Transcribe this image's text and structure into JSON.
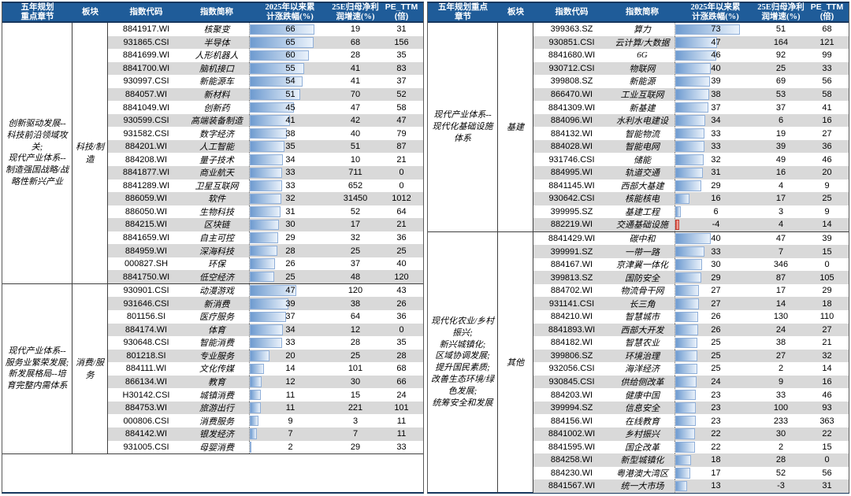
{
  "header": {
    "sector": "板块",
    "code": "指数代码",
    "name": "指数简称",
    "chg": "2025年以来累\n计涨跌幅(%)",
    "profit": "25E归母净利\n润增速(%)",
    "pe": "PE_TTM\n(倍)"
  },
  "colors": {
    "header_bg": "#1F5C99",
    "header_border": "#17375E",
    "bar_fill_start": "#6E9BD0",
    "bar_fill_end": "#EAF2FB",
    "bar_border": "#8FAFD9",
    "neg_bar_fill": "#E05A4E",
    "stripe": "#D9D9D9"
  },
  "tables": [
    {
      "chapter_header": "五年规划\n重点章节",
      "bar_max": 66,
      "trailing_blank": true,
      "sections": [
        {
          "chapter": "创新驱动发展--科技前沿领域攻关;\n现代产业体系--制造强国战略/战略性新兴产业",
          "sector": "科技/制造",
          "rows": [
            [
              "8841917.WI",
              "核聚变",
              "66",
              "19",
              "31"
            ],
            [
              "931865.CSI",
              "半导体",
              "65",
              "68",
              "156"
            ],
            [
              "8841699.WI",
              "人形机器人",
              "60",
              "28",
              "35"
            ],
            [
              "8841700.WI",
              "脑机接口",
              "55",
              "41",
              "83"
            ],
            [
              "930997.CSI",
              "新能源车",
              "54",
              "41",
              "37"
            ],
            [
              "884057.WI",
              "新材料",
              "51",
              "70",
              "52"
            ],
            [
              "8841049.WI",
              "创新药",
              "45",
              "47",
              "58"
            ],
            [
              "930599.CSI",
              "高端装备制造",
              "41",
              "42",
              "47"
            ],
            [
              "931582.CSI",
              "数字经济",
              "38",
              "40",
              "79"
            ],
            [
              "884201.WI",
              "人工智能",
              "35",
              "51",
              "87"
            ],
            [
              "884208.WI",
              "量子技术",
              "34",
              "10",
              "21"
            ],
            [
              "8841877.WI",
              "商业航天",
              "33",
              "711",
              "0"
            ],
            [
              "8841289.WI",
              "卫星互联网",
              "33",
              "652",
              "0"
            ],
            [
              "886059.WI",
              "软件",
              "32",
              "31450",
              "1012"
            ],
            [
              "886050.WI",
              "生物科技",
              "31",
              "52",
              "64"
            ],
            [
              "884215.WI",
              "区块链",
              "30",
              "17",
              "21"
            ],
            [
              "8841659.WI",
              "自主可控",
              "29",
              "32",
              "36"
            ],
            [
              "884959.WI",
              "深海科技",
              "28",
              "25",
              "25"
            ],
            [
              "000827.SH",
              "环保",
              "26",
              "37",
              "40"
            ],
            [
              "8841750.WI",
              "低空经济",
              "25",
              "48",
              "120"
            ]
          ]
        },
        {
          "chapter": "现代产业体系--服务业繁荣发展;\n新发展格局--培育完整内需体系",
          "sector": "消费/服务",
          "rows": [
            [
              "930901.CSI",
              "动漫游戏",
              "47",
              "120",
              "43"
            ],
            [
              "931646.CSI",
              "新消费",
              "39",
              "38",
              "26"
            ],
            [
              "801156.SI",
              "医疗服务",
              "37",
              "64",
              "36"
            ],
            [
              "884174.WI",
              "体育",
              "34",
              "12",
              "0"
            ],
            [
              "930648.CSI",
              "智能消费",
              "33",
              "28",
              "35"
            ],
            [
              "801218.SI",
              "专业服务",
              "20",
              "25",
              "28"
            ],
            [
              "884111.WI",
              "文化传媒",
              "14",
              "101",
              "68"
            ],
            [
              "866134.WI",
              "教育",
              "12",
              "30",
              "66"
            ],
            [
              "H30142.CSI",
              "城镇消费",
              "11",
              "15",
              "24"
            ],
            [
              "884753.WI",
              "旅游出行",
              "11",
              "221",
              "101"
            ],
            [
              "000806.CSI",
              "消费服务",
              "9",
              "3",
              "11"
            ],
            [
              "884142.WI",
              "银发经济",
              "7",
              "7",
              "11"
            ],
            [
              "931005.CSI",
              "母婴消费",
              "2",
              "29",
              "33"
            ]
          ]
        }
      ]
    },
    {
      "chapter_header": "五年规划重点\n章节",
      "bar_max": 73,
      "trailing_blank": false,
      "sections": [
        {
          "chapter": "现代产业体系--现代化基础设施体系",
          "sector": "基建",
          "rows": [
            [
              "399363.SZ",
              "算力",
              "73",
              "51",
              "68"
            ],
            [
              "930851.CSI",
              "云计算/大数据",
              "47",
              "164",
              "121"
            ],
            [
              "8841680.WI",
              "6G",
              "46",
              "92",
              "99"
            ],
            [
              "930712.CSI",
              "物联网",
              "40",
              "25",
              "33"
            ],
            [
              "399808.SZ",
              "新能源",
              "39",
              "69",
              "56"
            ],
            [
              "866470.WI",
              "工业互联网",
              "38",
              "53",
              "58"
            ],
            [
              "8841309.WI",
              "新基建",
              "37",
              "37",
              "41"
            ],
            [
              "884096.WI",
              "水利水电建设",
              "34",
              "6",
              "16"
            ],
            [
              "884132.WI",
              "智能物流",
              "33",
              "19",
              "27"
            ],
            [
              "884028.WI",
              "智能电网",
              "33",
              "39",
              "36"
            ],
            [
              "931746.CSI",
              "储能",
              "32",
              "49",
              "46"
            ],
            [
              "884995.WI",
              "轨道交通",
              "31",
              "16",
              "20"
            ],
            [
              "8841145.WI",
              "西部大基建",
              "29",
              "4",
              "9"
            ],
            [
              "930642.CSI",
              "核能核电",
              "16",
              "17",
              "25"
            ],
            [
              "399995.SZ",
              "基建工程",
              "6",
              "3",
              "9"
            ],
            [
              "882219.WI",
              "交通基础设施",
              "-4",
              "4",
              "14"
            ]
          ]
        },
        {
          "chapter": "现代化农业/乡村振兴;\n新兴城镇化;\n区域协调发展;\n提升国民素质;\n改善生态环境/绿色发展;\n统筹安全和发展",
          "sector": "其他",
          "rows": [
            [
              "8841429.WI",
              "碳中和",
              "40",
              "47",
              "39"
            ],
            [
              "399991.SZ",
              "一带一路",
              "33",
              "7",
              "15"
            ],
            [
              "884167.WI",
              "京津冀一体化",
              "30",
              "346",
              "0"
            ],
            [
              "399813.SZ",
              "国防安全",
              "29",
              "87",
              "105"
            ],
            [
              "884702.WI",
              "物流骨干网",
              "27",
              "17",
              "29"
            ],
            [
              "931141.CSI",
              "长三角",
              "27",
              "14",
              "18"
            ],
            [
              "884210.WI",
              "智慧城市",
              "26",
              "130",
              "110"
            ],
            [
              "8841893.WI",
              "西部大开发",
              "26",
              "24",
              "27"
            ],
            [
              "884182.WI",
              "智慧农业",
              "25",
              "38",
              "21"
            ],
            [
              "399806.SZ",
              "环境治理",
              "25",
              "27",
              "32"
            ],
            [
              "932056.CSI",
              "海洋经济",
              "25",
              "2",
              "14"
            ],
            [
              "930845.CSI",
              "供给侧改革",
              "24",
              "9",
              "16"
            ],
            [
              "884203.WI",
              "健康中国",
              "23",
              "33",
              "46"
            ],
            [
              "399994.SZ",
              "信息安全",
              "23",
              "100",
              "93"
            ],
            [
              "884156.WI",
              "在线教育",
              "23",
              "233",
              "363"
            ],
            [
              "8841002.WI",
              "乡村振兴",
              "22",
              "30",
              "22"
            ],
            [
              "8841595.WI",
              "国企改革",
              "22",
              "2",
              "15"
            ],
            [
              "884258.WI",
              "新型城镇化",
              "18",
              "28",
              "0"
            ],
            [
              "884230.WI",
              "粤港澳大湾区",
              "17",
              "52",
              "56"
            ],
            [
              "8841567.WI",
              "统一大市场",
              "13",
              "-3",
              "31"
            ]
          ]
        }
      ]
    }
  ]
}
